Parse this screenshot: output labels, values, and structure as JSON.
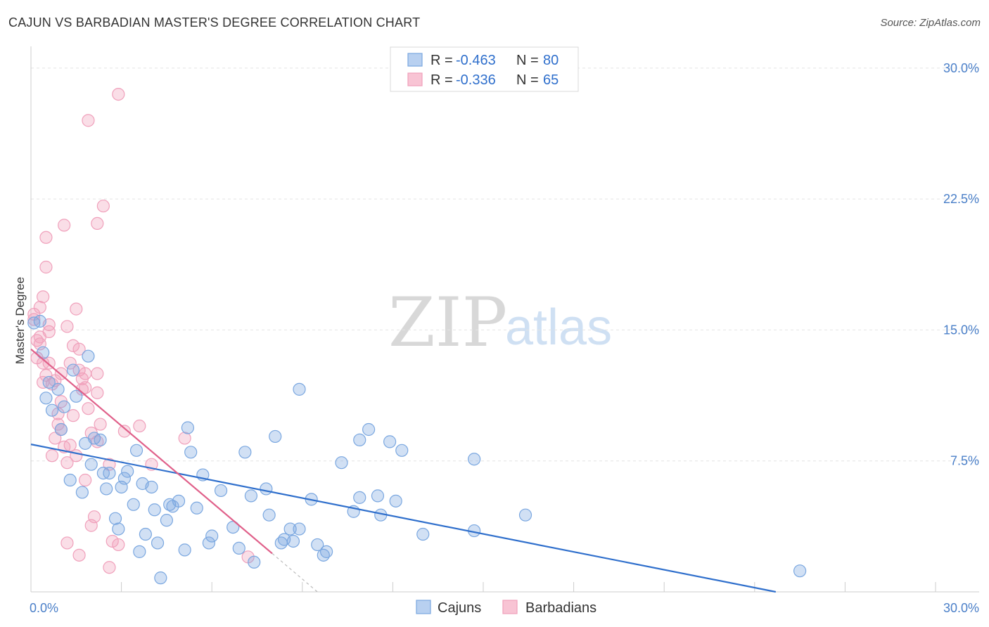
{
  "title": "CAJUN VS BARBADIAN MASTER'S DEGREE CORRELATION CHART",
  "source": "Source: ZipAtlas.com",
  "watermark": {
    "zip": "ZIP",
    "atlas": "atlas"
  },
  "legend": {
    "r_label": "R =",
    "n_label": "N =",
    "rows": [
      {
        "r": "-0.463",
        "n": "80"
      },
      {
        "r": "-0.336",
        "n": "65"
      }
    ]
  },
  "chart_data": {
    "type": "scatter",
    "title": "CAJUN VS BARBADIAN MASTER'S DEGREE CORRELATION CHART",
    "xlabel": "",
    "ylabel": "Master's Degree",
    "xlim": [
      0,
      30
    ],
    "ylim": [
      0,
      31
    ],
    "x_tick_labels": [
      "0.0%",
      "30.0%"
    ],
    "y_ticks": [
      7.5,
      15.0,
      22.5,
      30.0
    ],
    "y_tick_labels": [
      "7.5%",
      "15.0%",
      "22.5%",
      "30.0%"
    ],
    "colors": {
      "cajuns": "#7aa7e0",
      "barbadians": "#f0a0bb",
      "cajuns_line": "#2f6fcc",
      "barbadians_line": "#e0608a"
    },
    "series": [
      {
        "name": "Cajuns",
        "trend": {
          "x0": 0,
          "y0": 8.45,
          "x1": 24.7,
          "y1": 0
        },
        "points": [
          [
            0.1,
            15.4
          ],
          [
            0.3,
            15.5
          ],
          [
            0.4,
            13.7
          ],
          [
            0.5,
            11.1
          ],
          [
            0.6,
            12.0
          ],
          [
            0.7,
            10.4
          ],
          [
            0.9,
            11.6
          ],
          [
            1.0,
            9.3
          ],
          [
            1.1,
            10.6
          ],
          [
            1.3,
            6.4
          ],
          [
            1.4,
            12.7
          ],
          [
            1.5,
            11.2
          ],
          [
            1.7,
            5.7
          ],
          [
            1.8,
            8.5
          ],
          [
            1.9,
            13.5
          ],
          [
            2.0,
            7.3
          ],
          [
            2.1,
            8.8
          ],
          [
            2.3,
            8.7
          ],
          [
            2.4,
            6.8
          ],
          [
            2.5,
            5.9
          ],
          [
            2.6,
            6.8
          ],
          [
            2.8,
            4.2
          ],
          [
            2.9,
            3.6
          ],
          [
            3.0,
            6.0
          ],
          [
            3.1,
            6.5
          ],
          [
            3.2,
            6.9
          ],
          [
            3.4,
            5.0
          ],
          [
            3.5,
            8.1
          ],
          [
            3.6,
            2.3
          ],
          [
            3.7,
            6.2
          ],
          [
            3.8,
            3.3
          ],
          [
            4.0,
            6.0
          ],
          [
            4.1,
            4.7
          ],
          [
            4.2,
            2.8
          ],
          [
            4.3,
            0.8
          ],
          [
            4.5,
            4.1
          ],
          [
            4.6,
            5.0
          ],
          [
            4.7,
            4.9
          ],
          [
            4.9,
            5.2
          ],
          [
            5.1,
            2.4
          ],
          [
            5.2,
            9.4
          ],
          [
            5.3,
            8.0
          ],
          [
            5.5,
            4.8
          ],
          [
            5.7,
            6.7
          ],
          [
            5.9,
            2.8
          ],
          [
            6.0,
            3.2
          ],
          [
            6.3,
            5.8
          ],
          [
            6.7,
            3.7
          ],
          [
            6.9,
            2.5
          ],
          [
            7.1,
            8.0
          ],
          [
            7.3,
            5.5
          ],
          [
            7.4,
            1.7
          ],
          [
            7.8,
            5.9
          ],
          [
            7.9,
            4.4
          ],
          [
            8.1,
            8.9
          ],
          [
            8.3,
            2.8
          ],
          [
            8.4,
            3.0
          ],
          [
            8.6,
            3.6
          ],
          [
            8.7,
            2.9
          ],
          [
            8.9,
            3.6
          ],
          [
            8.9,
            11.6
          ],
          [
            9.3,
            5.3
          ],
          [
            9.5,
            2.7
          ],
          [
            9.7,
            2.1
          ],
          [
            9.8,
            2.3
          ],
          [
            10.3,
            7.4
          ],
          [
            10.7,
            4.6
          ],
          [
            10.9,
            5.4
          ],
          [
            10.9,
            8.7
          ],
          [
            11.2,
            9.3
          ],
          [
            11.5,
            5.5
          ],
          [
            11.6,
            4.4
          ],
          [
            11.9,
            8.6
          ],
          [
            12.1,
            5.2
          ],
          [
            12.3,
            8.1
          ],
          [
            13.0,
            3.3
          ],
          [
            14.7,
            7.6
          ],
          [
            14.7,
            3.5
          ],
          [
            16.4,
            4.4
          ],
          [
            25.5,
            1.2
          ]
        ]
      },
      {
        "name": "Barbadians",
        "trend": {
          "x0": 0,
          "y0": 13.9,
          "x1": 8.0,
          "y1": 2.2
        },
        "trend_dashed": {
          "x0": 8.0,
          "y0": 2.2,
          "x1": 9.5,
          "y1": 0
        },
        "points": [
          [
            0.1,
            15.9
          ],
          [
            0.2,
            14.4
          ],
          [
            0.3,
            16.3
          ],
          [
            0.3,
            14.6
          ],
          [
            0.4,
            16.9
          ],
          [
            0.4,
            13.1
          ],
          [
            0.4,
            12.0
          ],
          [
            0.5,
            20.3
          ],
          [
            0.5,
            18.6
          ],
          [
            0.6,
            15.3
          ],
          [
            0.6,
            13.1
          ],
          [
            0.7,
            11.9
          ],
          [
            0.7,
            7.8
          ],
          [
            0.8,
            8.8
          ],
          [
            0.8,
            12.1
          ],
          [
            0.9,
            10.2
          ],
          [
            0.9,
            9.6
          ],
          [
            1.0,
            9.3
          ],
          [
            1.0,
            12.5
          ],
          [
            1.1,
            21.0
          ],
          [
            1.1,
            8.3
          ],
          [
            1.2,
            7.4
          ],
          [
            1.2,
            15.2
          ],
          [
            1.2,
            2.8
          ],
          [
            1.3,
            8.4
          ],
          [
            1.3,
            13.1
          ],
          [
            1.4,
            10.1
          ],
          [
            1.4,
            14.1
          ],
          [
            1.5,
            16.2
          ],
          [
            1.5,
            7.8
          ],
          [
            1.6,
            12.7
          ],
          [
            1.6,
            13.9
          ],
          [
            1.6,
            2.1
          ],
          [
            1.7,
            12.2
          ],
          [
            1.7,
            11.6
          ],
          [
            1.8,
            6.4
          ],
          [
            1.8,
            11.7
          ],
          [
            1.8,
            12.5
          ],
          [
            1.9,
            27.0
          ],
          [
            1.9,
            10.5
          ],
          [
            2.0,
            9.1
          ],
          [
            2.0,
            3.8
          ],
          [
            2.1,
            4.3
          ],
          [
            2.2,
            11.4
          ],
          [
            2.2,
            8.6
          ],
          [
            2.2,
            12.5
          ],
          [
            2.2,
            21.1
          ],
          [
            2.3,
            9.6
          ],
          [
            2.4,
            22.1
          ],
          [
            2.6,
            7.3
          ],
          [
            2.6,
            1.4
          ],
          [
            2.7,
            2.9
          ],
          [
            2.9,
            28.5
          ],
          [
            2.9,
            2.7
          ],
          [
            3.1,
            9.2
          ],
          [
            3.6,
            9.5
          ],
          [
            4.0,
            7.3
          ],
          [
            5.1,
            8.8
          ],
          [
            7.2,
            2.0
          ],
          [
            0.1,
            15.6
          ],
          [
            0.2,
            13.4
          ],
          [
            0.3,
            14.2
          ],
          [
            0.5,
            12.4
          ],
          [
            0.6,
            14.9
          ],
          [
            1.0,
            10.9
          ]
        ]
      }
    ]
  },
  "bottom_legend": [
    {
      "label": "Cajuns"
    },
    {
      "label": "Barbadians"
    }
  ]
}
